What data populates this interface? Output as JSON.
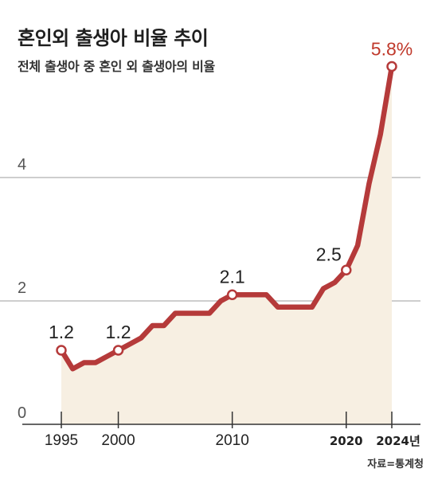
{
  "title": "혼인외 출생아 비율 추이",
  "subtitle": "전체 출생아 중 혼인 외 출생아의 비율",
  "source": "자료=통계청",
  "colors": {
    "line": "#b53a3a",
    "area": "#f7efe2",
    "grid": "#bdbdbd",
    "axis": "#333333",
    "highlight": "#c0392b"
  },
  "chart_data": {
    "type": "area",
    "title": "혼인외 출생아 비율 추이",
    "subtitle": "전체 출생아 중 혼인 외 출생아의 비율",
    "x": [
      1995,
      1996,
      1997,
      1998,
      1999,
      2000,
      2001,
      2002,
      2003,
      2004,
      2005,
      2006,
      2007,
      2008,
      2009,
      2010,
      2011,
      2012,
      2013,
      2014,
      2015,
      2016,
      2017,
      2018,
      2019,
      2020,
      2021,
      2022,
      2023,
      2024
    ],
    "values": [
      1.2,
      0.9,
      1.0,
      1.0,
      1.1,
      1.2,
      1.3,
      1.4,
      1.6,
      1.6,
      1.8,
      1.8,
      1.8,
      1.8,
      2.0,
      2.1,
      2.1,
      2.1,
      2.1,
      1.9,
      1.9,
      1.9,
      1.9,
      2.2,
      2.3,
      2.5,
      2.9,
      3.9,
      4.7,
      5.8
    ],
    "yticks": [
      0,
      2,
      4
    ],
    "xticks": [
      1995,
      2000,
      2010,
      2020,
      2024
    ],
    "xtick_labels": [
      "1995",
      "2000",
      "2010",
      "2020",
      "2024년"
    ],
    "ylim": [
      0,
      6
    ],
    "xlim": [
      1995,
      2024
    ],
    "grid": true,
    "labeled_points": [
      {
        "x": 1995,
        "label": "1.2"
      },
      {
        "x": 2000,
        "label": "1.2"
      },
      {
        "x": 2010,
        "label": "2.1"
      },
      {
        "x": 2020,
        "label": "2.5"
      },
      {
        "x": 2024,
        "label": "5.8%"
      }
    ]
  }
}
